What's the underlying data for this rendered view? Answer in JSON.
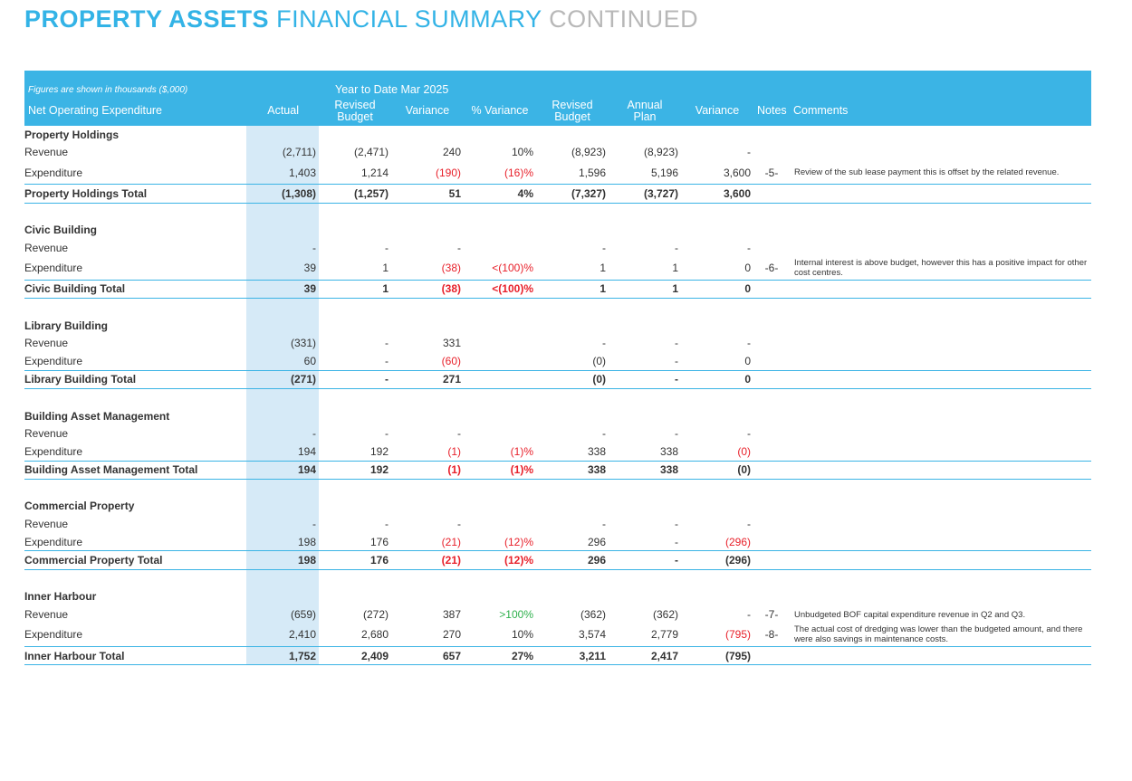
{
  "header": {
    "title_bold": "PROPERTY ASSETS",
    "title_light": "FINANCIAL SUMMARY",
    "title_grey": "CONTINUED"
  },
  "table": {
    "note": "Figures are shown in thousands ($,000)",
    "period": "Year to Date Mar 2025",
    "columns": [
      "Net Operating Expenditure",
      "Actual",
      "Revised Budget",
      "Variance",
      "% Variance",
      "Revised Budget",
      "Annual Plan",
      "Variance",
      "Notes",
      "Comments"
    ],
    "sections": [
      {
        "title": "Property Holdings",
        "rows": [
          {
            "label": "Revenue",
            "cells": [
              "(2,711)",
              "(2,471)",
              "240",
              "10%",
              "(8,923)",
              "(8,923)",
              "-"
            ]
          },
          {
            "label": "Expenditure",
            "cells": [
              "1,403",
              "1,214",
              "(190)",
              "(16)%",
              "1,596",
              "5,196",
              "3,600"
            ],
            "red": [
              2,
              3
            ],
            "note": "-5-",
            "comment": "Review of the sub lease payment this is offset by the related revenue."
          },
          {
            "label": "Property Holdings Total",
            "total": true,
            "cells": [
              "(1,308)",
              "(1,257)",
              "51",
              "4%",
              "(7,327)",
              "(3,727)",
              "3,600"
            ]
          }
        ]
      },
      {
        "title": "Civic Building",
        "rows": [
          {
            "label": "Revenue",
            "cells": [
              "-",
              "-",
              "-",
              null,
              "-",
              "-",
              "-"
            ]
          },
          {
            "label": "Expenditure",
            "cells": [
              "39",
              "1",
              "(38)",
              "<(100)%",
              "1",
              "1",
              "0"
            ],
            "red": [
              2,
              3
            ],
            "note": "-6-",
            "comment": "Internal interest is above budget, however this has a positive impact for other cost centres."
          },
          {
            "label": "Civic Building Total",
            "total": true,
            "cells": [
              "39",
              "1",
              "(38)",
              "<(100)%",
              "1",
              "1",
              "0"
            ],
            "red": [
              2,
              3
            ]
          }
        ]
      },
      {
        "title": "Library Building",
        "rows": [
          {
            "label": "Revenue",
            "cells": [
              "(331)",
              "-",
              "331",
              null,
              "-",
              "-",
              "-"
            ]
          },
          {
            "label": "Expenditure",
            "cells": [
              "60",
              "-",
              "(60)",
              null,
              "(0)",
              "-",
              "0"
            ],
            "red": [
              2
            ]
          },
          {
            "label": "Library Building Total",
            "total": true,
            "cells": [
              "(271)",
              "-",
              "271",
              null,
              "(0)",
              "-",
              "0"
            ]
          }
        ]
      },
      {
        "title": "Building Asset Management",
        "rows": [
          {
            "label": "Revenue",
            "cells": [
              "-",
              "-",
              "-",
              null,
              "-",
              "-",
              "-"
            ]
          },
          {
            "label": "Expenditure",
            "cells": [
              "194",
              "192",
              "(1)",
              "(1)%",
              "338",
              "338",
              "(0)"
            ],
            "red": [
              2,
              3,
              6
            ]
          },
          {
            "label": "Building Asset Management Total",
            "total": true,
            "cells": [
              "194",
              "192",
              "(1)",
              "(1)%",
              "338",
              "338",
              "(0)"
            ],
            "red": [
              2,
              3
            ]
          }
        ]
      },
      {
        "title": "Commercial Property",
        "rows": [
          {
            "label": "Revenue",
            "cells": [
              "-",
              "-",
              "-",
              null,
              "-",
              "-",
              "-"
            ]
          },
          {
            "label": "Expenditure",
            "cells": [
              "198",
              "176",
              "(21)",
              "(12)%",
              "296",
              "-",
              "(296)"
            ],
            "red": [
              2,
              3,
              6
            ]
          },
          {
            "label": "Commercial Property Total",
            "total": true,
            "cells": [
              "198",
              "176",
              "(21)",
              "(12)%",
              "296",
              "-",
              "(296)"
            ],
            "red": [
              2,
              3
            ]
          }
        ]
      },
      {
        "title": "Inner Harbour",
        "rows": [
          {
            "label": "Revenue",
            "cells": [
              "(659)",
              "(272)",
              "387",
              ">100%",
              "(362)",
              "(362)",
              "-"
            ],
            "green": [
              3
            ],
            "note": "-7-",
            "comment": "Unbudgeted BOF capital expenditure revenue in Q2 and Q3."
          },
          {
            "label": "Expenditure",
            "cells": [
              "2,410",
              "2,680",
              "270",
              "10%",
              "3,574",
              "2,779",
              "(795)"
            ],
            "red": [
              6
            ],
            "note": "-8-",
            "comment": "The actual cost of dredging was lower than the budgeted amount, and there were also savings in maintenance costs."
          },
          {
            "label": "Inner Harbour Total",
            "total": true,
            "cells": [
              "1,752",
              "2,409",
              "657",
              "27%",
              "3,211",
              "2,417",
              "(795)"
            ]
          }
        ]
      }
    ]
  }
}
